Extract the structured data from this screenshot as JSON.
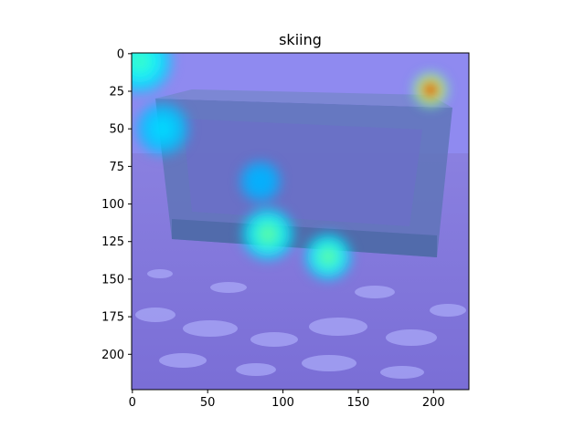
{
  "chart_data": {
    "type": "heatmap",
    "title": "skiing",
    "xlabel": "",
    "ylabel": "",
    "xlim": [
      -0.5,
      223.5
    ],
    "ylim": [
      223.5,
      -0.5
    ],
    "x_ticks": [
      0,
      50,
      100,
      150,
      200
    ],
    "y_ticks": [
      0,
      25,
      50,
      75,
      100,
      125,
      150,
      175,
      200
    ],
    "grid": false,
    "legend": "none",
    "colormap": "jet",
    "background_image_description": "",
    "hotspots": [
      {
        "x": 198,
        "y": 24,
        "r": 12,
        "level": 1.0
      },
      {
        "x": 5,
        "y": 5,
        "r": 22,
        "level": 0.45
      },
      {
        "x": 90,
        "y": 120,
        "r": 18,
        "level": 0.5
      },
      {
        "x": 130,
        "y": 135,
        "r": 16,
        "level": 0.5
      },
      {
        "x": 20,
        "y": 50,
        "r": 18,
        "level": 0.35
      },
      {
        "x": 85,
        "y": 85,
        "r": 14,
        "level": 0.3
      }
    ]
  }
}
